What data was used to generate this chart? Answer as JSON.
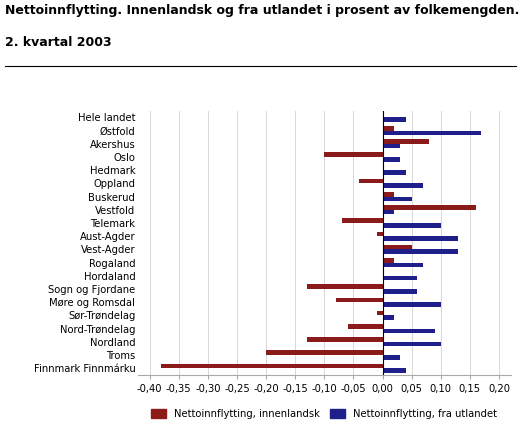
{
  "title_line1": "Nettoinnflytting. Innenlandsk og fra utlandet i prosent av folkemengden.",
  "title_line2": "2. kvartal 2003",
  "categories": [
    "Hele landet",
    "Østfold",
    "Akershus",
    "Oslo",
    "Hedmark",
    "Oppland",
    "Buskerud",
    "Vestfold",
    "Telemark",
    "Aust-Agder",
    "Vest-Agder",
    "Rogaland",
    "Hordaland",
    "Sogn og Fjordane",
    "Møre og Romsdal",
    "Sør-Trøndelag",
    "Nord-Trøndelag",
    "Nordland",
    "Troms",
    "Finnmark Finnmárku"
  ],
  "innenlandsk": [
    0.0,
    0.02,
    0.08,
    -0.1,
    0.0,
    -0.04,
    0.02,
    0.16,
    -0.07,
    -0.01,
    0.05,
    0.02,
    0.0,
    -0.13,
    -0.08,
    -0.01,
    -0.06,
    -0.13,
    -0.2,
    -0.38
  ],
  "fra_utlandet": [
    0.04,
    0.17,
    0.03,
    0.03,
    0.04,
    0.07,
    0.05,
    0.02,
    0.1,
    0.13,
    0.13,
    0.07,
    0.06,
    0.06,
    0.1,
    0.02,
    0.09,
    0.1,
    0.03,
    0.04
  ],
  "color_innenlandsk": "#8B1A1A",
  "color_fra_utlandet": "#1F1F8B",
  "legend_innenlandsk": "Nettoinnflytting, innenlandsk",
  "legend_fra_utlandet": "Nettoinnflytting, fra utlandet",
  "xlim": [
    -0.42,
    0.22
  ],
  "xticks": [
    -0.4,
    -0.35,
    -0.3,
    -0.25,
    -0.2,
    -0.15,
    -0.1,
    -0.05,
    0.0,
    0.05,
    0.1,
    0.15,
    0.2
  ],
  "xtick_labels": [
    "-0,40",
    "-0,35",
    "-0,30",
    "-0,25",
    "-0,20",
    "-0,15",
    "-0,10",
    "-0,05",
    "0,00",
    "0,05",
    "0,10",
    "0,15",
    "0,20"
  ],
  "background_color": "#ffffff",
  "grid_color": "#d0d0d0",
  "title_fontsize": 9.0,
  "label_fontsize": 7.2,
  "tick_fontsize": 7.2,
  "bar_height": 0.35
}
